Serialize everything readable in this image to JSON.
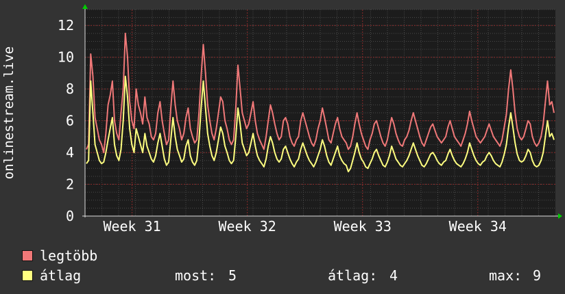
{
  "chart_data": {
    "type": "line",
    "ylabel": "onlinestream.live",
    "xlabel": "",
    "ylim": [
      0,
      13
    ],
    "yticks": [
      0,
      2,
      4,
      6,
      8,
      10,
      12
    ],
    "xticks": [
      {
        "label": "Week 31",
        "pos": 0.1
      },
      {
        "label": "Week 32",
        "pos": 0.345
      },
      {
        "label": "Week 33",
        "pos": 0.59
      },
      {
        "label": "Week 34",
        "pos": 0.835
      }
    ],
    "grid": true,
    "legend": "bottom-left",
    "colors": {
      "background": "#333333",
      "plot": "#1c1c1c",
      "major_grid": "#8a2a2a",
      "minor_grid": "#4a4a4a",
      "axis": "#dddddd",
      "arrow": "#00cc00"
    },
    "series": [
      {
        "name": "legtöbb",
        "color": "#f07878",
        "values": [
          4.2,
          4.5,
          10.2,
          8.8,
          6.2,
          5.5,
          4.8,
          4.5,
          4.0,
          5.2,
          7.0,
          7.6,
          8.5,
          6.0,
          5.2,
          4.8,
          6.5,
          8.0,
          11.5,
          10.0,
          7.2,
          6.0,
          5.5,
          8.0,
          7.0,
          6.5,
          5.8,
          7.5,
          6.2,
          5.8,
          5.0,
          4.8,
          5.2,
          6.5,
          7.2,
          6.0,
          5.2,
          4.5,
          4.8,
          6.8,
          8.5,
          7.0,
          6.0,
          5.5,
          4.8,
          5.2,
          6.2,
          6.8,
          5.5,
          5.0,
          4.6,
          4.8,
          6.5,
          8.8,
          10.8,
          9.0,
          7.0,
          6.0,
          5.2,
          4.8,
          5.5,
          6.5,
          7.5,
          7.2,
          6.0,
          5.5,
          4.8,
          4.5,
          4.8,
          6.8,
          9.5,
          8.0,
          6.5,
          6.0,
          5.5,
          5.8,
          6.5,
          7.2,
          6.0,
          5.2,
          4.8,
          4.5,
          4.2,
          5.0,
          6.0,
          7.0,
          6.5,
          5.8,
          5.2,
          4.8,
          5.0,
          6.0,
          6.2,
          5.8,
          5.0,
          4.6,
          4.4,
          4.8,
          5.0,
          6.0,
          6.5,
          6.0,
          5.5,
          5.0,
          4.6,
          4.4,
          4.8,
          5.5,
          6.0,
          6.8,
          6.2,
          5.5,
          4.8,
          4.6,
          5.2,
          5.8,
          6.2,
          5.5,
          5.0,
          4.8,
          4.6,
          4.2,
          4.4,
          5.0,
          5.8,
          6.5,
          5.8,
          5.2,
          4.8,
          4.4,
          4.2,
          4.8,
          5.2,
          5.8,
          6.0,
          5.5,
          5.0,
          4.6,
          4.4,
          4.8,
          5.5,
          6.2,
          5.8,
          5.2,
          4.8,
          4.5,
          4.4,
          4.8,
          5.0,
          5.4,
          6.0,
          6.5,
          6.0,
          5.5,
          5.0,
          4.6,
          4.4,
          4.8,
          5.2,
          5.6,
          5.8,
          5.4,
          5.0,
          4.8,
          4.6,
          4.8,
          5.0,
          5.6,
          6.0,
          5.5,
          5.0,
          4.8,
          4.6,
          4.4,
          4.8,
          5.2,
          5.8,
          6.6,
          6.0,
          5.5,
          5.0,
          4.8,
          4.6,
          4.8,
          5.0,
          5.4,
          5.8,
          5.4,
          5.0,
          4.8,
          4.6,
          4.4,
          4.8,
          5.6,
          6.4,
          8.0,
          9.2,
          8.0,
          6.5,
          5.5,
          5.0,
          4.8,
          5.0,
          5.5,
          6.0,
          5.8,
          5.0,
          4.6,
          4.4,
          4.6,
          5.0,
          5.8,
          7.2,
          8.5,
          7.0,
          7.2,
          6.5
        ]
      },
      {
        "name": "átlag",
        "color": "#ffff80",
        "values": [
          3.3,
          3.5,
          8.5,
          6.5,
          4.5,
          4.0,
          3.5,
          3.3,
          3.4,
          4.0,
          4.8,
          5.5,
          6.2,
          4.5,
          3.8,
          3.5,
          4.2,
          6.0,
          8.8,
          7.5,
          5.5,
          4.5,
          4.0,
          5.5,
          5.0,
          4.5,
          4.0,
          5.2,
          4.4,
          4.0,
          3.6,
          3.4,
          3.8,
          4.6,
          5.2,
          4.4,
          3.6,
          3.2,
          3.4,
          4.8,
          6.2,
          5.0,
          4.2,
          3.8,
          3.4,
          3.6,
          4.4,
          4.8,
          3.8,
          3.4,
          3.2,
          3.5,
          4.8,
          6.8,
          8.5,
          6.8,
          5.2,
          4.4,
          3.8,
          3.5,
          4.0,
          4.8,
          5.6,
          5.2,
          4.4,
          4.0,
          3.5,
          3.3,
          3.5,
          5.0,
          6.8,
          5.8,
          4.6,
          4.2,
          3.8,
          4.0,
          4.6,
          5.2,
          4.4,
          3.8,
          3.5,
          3.3,
          3.1,
          3.6,
          4.4,
          5.0,
          4.6,
          4.0,
          3.6,
          3.4,
          3.6,
          4.2,
          4.4,
          4.0,
          3.6,
          3.3,
          3.1,
          3.4,
          3.6,
          4.2,
          4.6,
          4.2,
          3.8,
          3.5,
          3.3,
          3.1,
          3.4,
          3.8,
          4.2,
          4.8,
          4.4,
          3.8,
          3.4,
          3.2,
          3.6,
          4.0,
          4.4,
          3.8,
          3.5,
          3.3,
          3.2,
          2.8,
          3.0,
          3.5,
          4.0,
          4.6,
          4.0,
          3.6,
          3.4,
          3.1,
          3.0,
          3.3,
          3.6,
          4.0,
          4.2,
          3.8,
          3.5,
          3.2,
          3.1,
          3.4,
          3.8,
          4.4,
          4.0,
          3.6,
          3.4,
          3.2,
          3.1,
          3.3,
          3.5,
          3.8,
          4.2,
          4.6,
          4.2,
          3.8,
          3.5,
          3.2,
          3.1,
          3.3,
          3.6,
          3.9,
          4.0,
          3.8,
          3.5,
          3.3,
          3.2,
          3.4,
          3.5,
          3.9,
          4.2,
          3.8,
          3.5,
          3.3,
          3.2,
          3.1,
          3.3,
          3.6,
          4.0,
          4.6,
          4.2,
          3.8,
          3.5,
          3.3,
          3.2,
          3.4,
          3.5,
          3.8,
          4.0,
          3.8,
          3.5,
          3.3,
          3.2,
          3.1,
          3.4,
          3.9,
          4.5,
          5.6,
          6.5,
          5.6,
          4.6,
          3.9,
          3.5,
          3.4,
          3.5,
          3.8,
          4.2,
          4.0,
          3.5,
          3.2,
          3.1,
          3.2,
          3.5,
          4.0,
          5.0,
          6.0,
          5.0,
          5.2,
          4.8
        ]
      }
    ]
  },
  "legend": {
    "items": [
      {
        "label": "legtöbb",
        "color": "#f07878"
      },
      {
        "label": "átlag",
        "color": "#ffff80"
      }
    ],
    "stats": {
      "most_label": "most:",
      "most_value": "5",
      "atlag_label": "átlag:",
      "atlag_value": "4",
      "max_label": "max:",
      "max_value": "9"
    }
  }
}
